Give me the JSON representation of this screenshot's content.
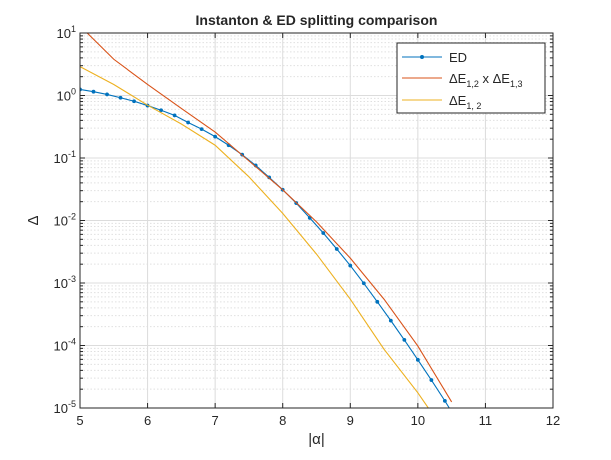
{
  "chart_data": {
    "type": "line",
    "title": "Instanton & ED splitting comparison",
    "xlabel": "|α|",
    "ylabel": "Δ",
    "xlim": [
      5,
      12
    ],
    "ylim": [
      1e-05,
      10
    ],
    "yscale": "log",
    "grid": true,
    "minor_grid": true,
    "legend_location": "top-right",
    "xticks": [
      "5",
      "6",
      "7",
      "8",
      "9",
      "10",
      "11",
      "12"
    ],
    "yticks": [
      {
        "base": "10",
        "exp": "1"
      },
      {
        "base": "10",
        "exp": "0"
      },
      {
        "base": "10",
        "exp": "-1"
      },
      {
        "base": "10",
        "exp": "-2"
      },
      {
        "base": "10",
        "exp": "-3"
      },
      {
        "base": "10",
        "exp": "-4"
      },
      {
        "base": "10",
        "exp": "-5"
      }
    ],
    "legend": [
      {
        "text": "ED"
      },
      {
        "parts": [
          "ΔE",
          "1,2",
          " x ΔE",
          "1,3"
        ]
      },
      {
        "parts": [
          "ΔE",
          "1, 2"
        ]
      }
    ],
    "series": [
      {
        "color": "#0072bd",
        "marker": "dot",
        "x": [
          5.0,
          5.2,
          5.4,
          5.6,
          5.8,
          6.0,
          6.2,
          6.4,
          6.6,
          6.8,
          7.0,
          7.2,
          7.4,
          7.6,
          7.8,
          8.0,
          8.2,
          8.4,
          8.6,
          8.8,
          9.0,
          9.2,
          9.4,
          9.6,
          9.8,
          10.0,
          10.2,
          10.4,
          10.6
        ],
        "y": [
          1.25,
          1.15,
          1.04,
          0.92,
          0.81,
          0.69,
          0.58,
          0.48,
          0.37,
          0.29,
          0.22,
          0.16,
          0.113,
          0.076,
          0.049,
          0.031,
          0.019,
          0.011,
          0.0063,
          0.0035,
          0.0019,
          0.00099,
          0.0005,
          0.00025,
          0.000123,
          5.9e-05,
          2.8e-05,
          1.3e-05,
          5.8e-06
        ]
      },
      {
        "color": "#d95319",
        "marker": "none",
        "x": [
          5.0,
          5.5,
          6.0,
          6.5,
          7.0,
          7.5,
          8.0,
          8.5,
          9.0,
          9.5,
          10.0,
          10.5
        ],
        "y": [
          13.0,
          3.8,
          1.5,
          0.62,
          0.26,
          0.09,
          0.031,
          0.0095,
          0.0025,
          0.00055,
          9.8e-05,
          1.25e-05
        ]
      },
      {
        "color": "#edb120",
        "marker": "none",
        "x": [
          5.0,
          5.5,
          6.0,
          6.5,
          7.0,
          7.5,
          8.0,
          8.5,
          9.0,
          9.5,
          10.0,
          10.2
        ],
        "y": [
          2.9,
          1.5,
          0.7,
          0.35,
          0.16,
          0.05,
          0.013,
          0.0029,
          0.00055,
          8.7e-05,
          1.75e-05,
          8.5e-06
        ]
      }
    ]
  }
}
